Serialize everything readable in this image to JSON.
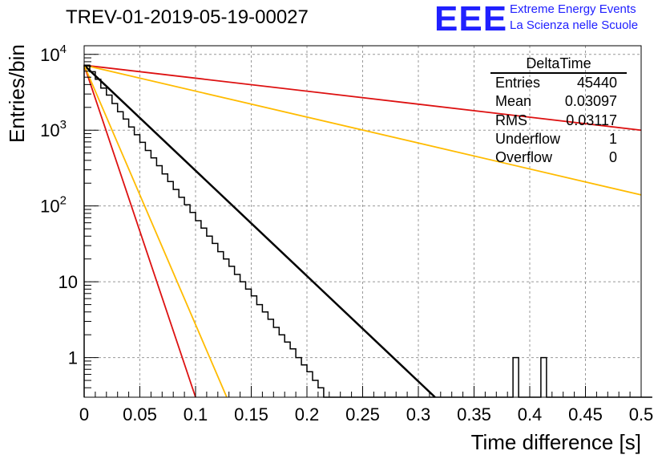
{
  "header": {
    "title": "TREV-01-2019-05-19-00027",
    "logo_text": "EEE",
    "logo_line1": "Extreme Energy Events",
    "logo_line2": "La Scienza nelle Scuole"
  },
  "stats_box": {
    "name": "DeltaTime",
    "rows": [
      {
        "label": "Entries",
        "value": "45440"
      },
      {
        "label": "Mean",
        "value": "0.03097"
      },
      {
        "label": "RMS",
        "value": "0.03117"
      },
      {
        "label": "Underflow",
        "value": "1"
      },
      {
        "label": "Overflow",
        "value": "0"
      }
    ]
  },
  "chart_data": {
    "type": "histogram",
    "xlabel": "Time difference [s]",
    "ylabel": "Entries/bin",
    "xlim": [
      0,
      0.5
    ],
    "ylim": [
      0.3,
      13000
    ],
    "y_scale": "log",
    "grid": true,
    "x_ticks": [
      "0",
      "0.05",
      "0.1",
      "0.15",
      "0.2",
      "0.25",
      "0.3",
      "0.35",
      "0.4",
      "0.45",
      "0.5"
    ],
    "y_ticks": [
      "1",
      "10",
      "10^2",
      "10^3",
      "10^4"
    ],
    "bin_width": 0.005,
    "histogram": {
      "bin_edges_start": 0,
      "counts": [
        7200,
        5900,
        4700,
        3600,
        2900,
        2250,
        1750,
        1400,
        1100,
        870,
        690,
        540,
        430,
        340,
        265,
        210,
        165,
        130,
        104,
        82,
        64,
        51,
        40,
        32,
        25,
        20,
        16,
        12.5,
        10,
        8,
        6.5,
        5,
        4,
        3.2,
        2.5,
        2,
        1.6,
        1.3,
        1.0,
        0.8,
        0.65,
        0.5,
        0.4,
        0,
        0,
        0,
        0,
        0,
        0,
        0,
        0,
        0,
        0,
        0,
        0,
        0,
        0,
        0,
        0,
        0,
        0,
        0,
        0,
        0,
        0,
        0,
        0,
        0,
        0,
        0,
        0,
        0,
        0,
        0,
        0,
        0,
        0,
        1,
        0,
        0,
        0,
        0,
        1,
        0,
        0,
        0,
        0,
        0,
        0,
        0,
        0,
        0,
        0,
        0,
        0,
        0,
        0,
        0,
        0,
        0,
        0,
        0
      ]
    },
    "fits": [
      {
        "color": "#000000",
        "x": [
          0,
          0.315
        ],
        "y": [
          7200,
          0.3
        ],
        "style": "thick"
      },
      {
        "color": "#dd1111",
        "x": [
          0,
          0.1
        ],
        "y": [
          7200,
          0.3
        ]
      },
      {
        "color": "#dd1111",
        "x": [
          0,
          0.5
        ],
        "y": [
          7200,
          1000
        ]
      },
      {
        "color": "#ffbb00",
        "x": [
          0,
          0.128
        ],
        "y": [
          7200,
          0.3
        ]
      },
      {
        "color": "#ffbb00",
        "x": [
          0,
          0.5
        ],
        "y": [
          7200,
          140
        ]
      }
    ]
  }
}
